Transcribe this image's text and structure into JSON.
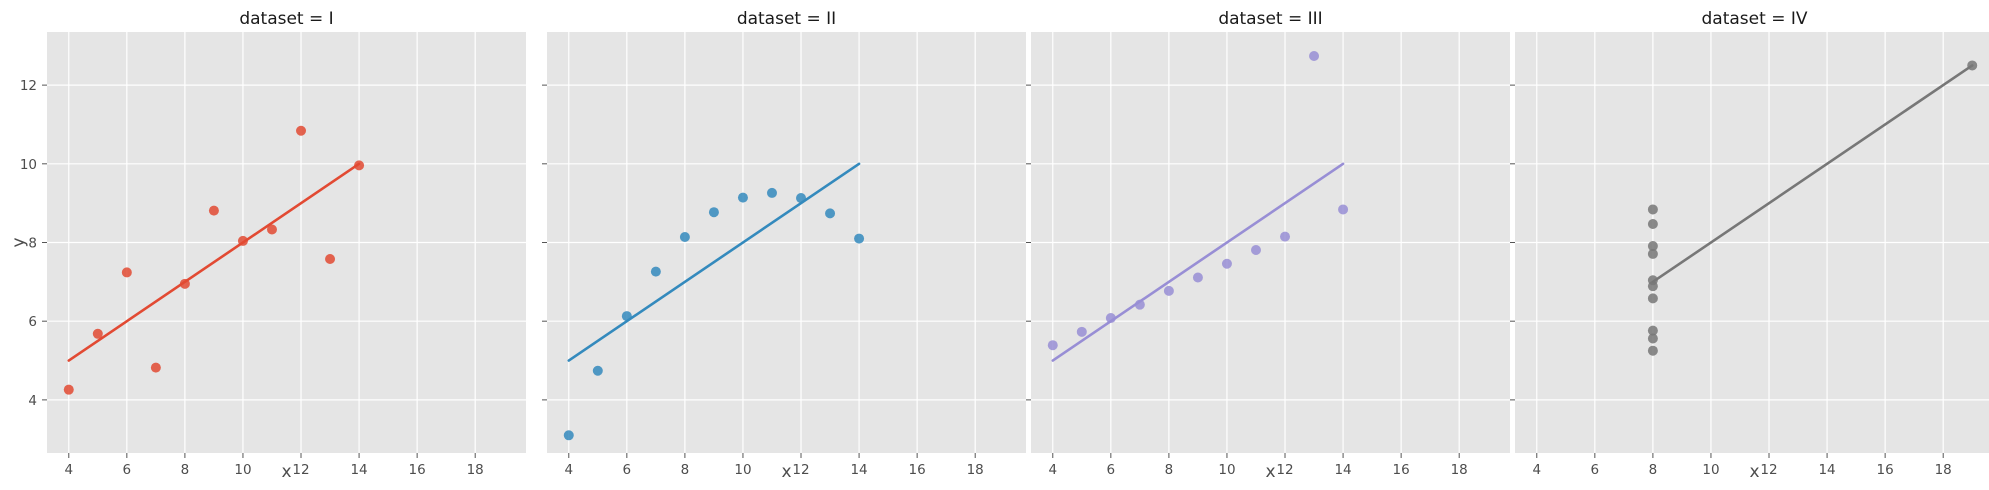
{
  "colors": {
    "background": "#ffffff",
    "panel": "#e5e5e5",
    "grid": "#ffffff",
    "text": "#4d4d4d"
  },
  "chart_data": [
    {
      "type": "scatter",
      "title": "dataset = I",
      "xlabel": "x",
      "ylabel": "y",
      "xlim": [
        3.25,
        19.75
      ],
      "ylim": [
        2.65,
        13.35
      ],
      "xticks": [
        "4",
        "6",
        "8",
        "10",
        "12",
        "14",
        "16",
        "18"
      ],
      "yticks": [
        "4",
        "6",
        "8",
        "10",
        "12"
      ],
      "grid": true,
      "color": "#e24a33",
      "x": [
        10,
        8,
        13,
        9,
        11,
        14,
        6,
        4,
        12,
        7,
        5
      ],
      "y": [
        8.04,
        6.95,
        7.58,
        8.81,
        8.33,
        9.96,
        7.24,
        4.26,
        10.84,
        4.82,
        5.68
      ],
      "fit": {
        "x": [
          4,
          14
        ],
        "y": [
          5.0,
          10.0
        ]
      }
    },
    {
      "type": "scatter",
      "title": "dataset = II",
      "xlabel": "x",
      "ylabel": "",
      "xlim": [
        3.25,
        19.75
      ],
      "ylim": [
        2.65,
        13.35
      ],
      "xticks": [
        "4",
        "6",
        "8",
        "10",
        "12",
        "14",
        "16",
        "18"
      ],
      "yticks": [
        "",
        "",
        "",
        "",
        ""
      ],
      "grid": true,
      "color": "#348abd",
      "x": [
        10,
        8,
        13,
        9,
        11,
        14,
        6,
        4,
        12,
        7,
        5
      ],
      "y": [
        9.14,
        8.14,
        8.74,
        8.77,
        9.26,
        8.1,
        6.13,
        3.1,
        9.13,
        7.26,
        4.74
      ],
      "fit": {
        "x": [
          4,
          14
        ],
        "y": [
          5.0,
          10.0
        ]
      }
    },
    {
      "type": "scatter",
      "title": "dataset = III",
      "xlabel": "x",
      "ylabel": "",
      "xlim": [
        3.25,
        19.75
      ],
      "ylim": [
        2.65,
        13.35
      ],
      "xticks": [
        "4",
        "6",
        "8",
        "10",
        "12",
        "14",
        "16",
        "18"
      ],
      "yticks": [
        "",
        "",
        "",
        "",
        ""
      ],
      "grid": true,
      "color": "#988ed5",
      "x": [
        10,
        8,
        13,
        9,
        11,
        14,
        6,
        4,
        12,
        7,
        5
      ],
      "y": [
        7.46,
        6.77,
        12.74,
        7.11,
        7.81,
        8.84,
        6.08,
        5.39,
        8.15,
        6.42,
        5.73
      ],
      "fit": {
        "x": [
          4,
          14
        ],
        "y": [
          5.0,
          10.0
        ]
      }
    },
    {
      "type": "scatter",
      "title": "dataset = IV",
      "xlabel": "x",
      "ylabel": "",
      "xlim": [
        3.25,
        19.75
      ],
      "ylim": [
        2.65,
        13.35
      ],
      "xticks": [
        "4",
        "6",
        "8",
        "10",
        "12",
        "14",
        "16",
        "18"
      ],
      "yticks": [
        "",
        "",
        "",
        "",
        ""
      ],
      "grid": true,
      "color": "#777777",
      "x": [
        8,
        8,
        8,
        8,
        8,
        8,
        8,
        19,
        8,
        8,
        8
      ],
      "y": [
        6.58,
        5.76,
        7.71,
        8.84,
        8.47,
        7.04,
        5.25,
        12.5,
        5.56,
        7.91,
        6.89
      ],
      "fit": {
        "x": [
          8,
          19
        ],
        "y": [
          7.0,
          12.5
        ]
      }
    }
  ]
}
